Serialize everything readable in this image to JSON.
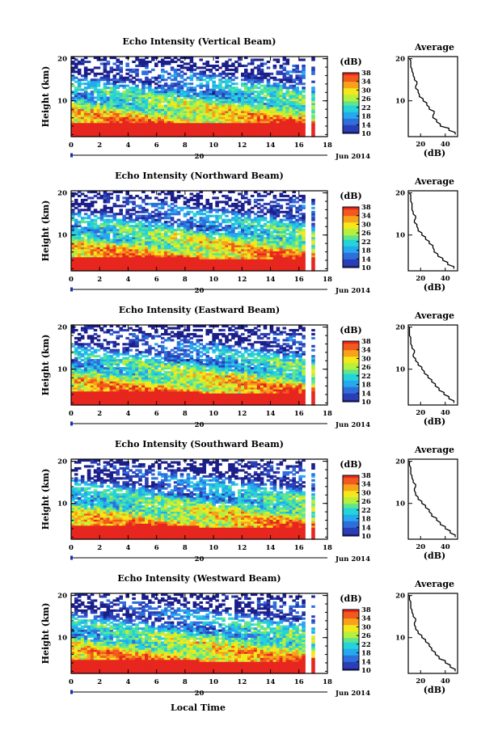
{
  "figure": {
    "xlabel": "Local Time",
    "colorbar_unit": "(dB)",
    "colorbar_ticks": [
      "10",
      "14",
      "18",
      "22",
      "26",
      "30",
      "34",
      "38"
    ],
    "colormap": [
      "#1b1f8a",
      "#2a3fb5",
      "#2f6fdc",
      "#25a9ef",
      "#25d3d8",
      "#5fe58f",
      "#b6ef3c",
      "#f4e81c",
      "#f7a21b",
      "#f2591d",
      "#e7261f"
    ],
    "date_label": "20",
    "month_label": "Jun 2014",
    "profile_title": "Average",
    "profile_xlabel": "(dB)"
  },
  "chart_data": [
    {
      "type": "heatmap",
      "title": "Echo Intensity (Vertical Beam)",
      "xlabel": "",
      "ylabel": "Height (km)",
      "xlim": [
        0,
        18
      ],
      "ylim": [
        1.5,
        20.5
      ],
      "xticks": [
        "0",
        "2",
        "4",
        "6",
        "8",
        "10",
        "12",
        "14",
        "16",
        "18"
      ],
      "yticks": [
        "10",
        "20"
      ],
      "color_range_dB": [
        10,
        38
      ],
      "data_gap_hours": [
        16.3,
        16.8
      ],
      "low_level_red_top_km": 4.8,
      "profile": {
        "title": "Average",
        "xlabel": "(dB)",
        "xticks": [
          "20",
          "40"
        ],
        "yticks": [
          "10",
          "20"
        ],
        "height_km": [
          2,
          3,
          4,
          5,
          6,
          7,
          8,
          9,
          10,
          11,
          12,
          13,
          14,
          15,
          16,
          17,
          18,
          19,
          20
        ],
        "intensity_dB": [
          48,
          43,
          36,
          33,
          30,
          31,
          27,
          25,
          22,
          19,
          18,
          16,
          17,
          15,
          14,
          13,
          12,
          12,
          11
        ]
      }
    },
    {
      "type": "heatmap",
      "title": "Echo Intensity (Northward Beam)",
      "xlabel": "",
      "ylabel": "Height (km)",
      "xlim": [
        0,
        18
      ],
      "ylim": [
        1.5,
        20.5
      ],
      "xticks": [
        "0",
        "2",
        "4",
        "6",
        "8",
        "10",
        "12",
        "14",
        "16",
        "18"
      ],
      "yticks": [
        "10",
        "20"
      ],
      "color_range_dB": [
        10,
        38
      ],
      "data_gap_hours": [
        16.3,
        16.8
      ],
      "low_level_red_top_km": 4.5,
      "profile": {
        "title": "Average",
        "xlabel": "(dB)",
        "xticks": [
          "20",
          "40"
        ],
        "yticks": [
          "10",
          "20"
        ],
        "height_km": [
          2,
          3,
          4,
          5,
          6,
          7,
          8,
          9,
          10,
          11,
          12,
          13,
          14,
          15,
          16,
          17,
          18,
          19,
          20
        ],
        "intensity_dB": [
          47,
          42,
          38,
          34,
          31,
          30,
          27,
          24,
          21,
          18,
          17,
          15,
          16,
          14,
          13,
          13,
          12,
          12,
          11
        ]
      }
    },
    {
      "type": "heatmap",
      "title": "Echo Intensity (Eastward Beam)",
      "xlabel": "",
      "ylabel": "Height (km)",
      "xlim": [
        0,
        18
      ],
      "ylim": [
        1.5,
        20.5
      ],
      "xticks": [
        "0",
        "2",
        "4",
        "6",
        "8",
        "10",
        "12",
        "14",
        "16",
        "18"
      ],
      "yticks": [
        "10",
        "20"
      ],
      "color_range_dB": [
        10,
        38
      ],
      "data_gap_hours": [
        16.3,
        16.8
      ],
      "low_level_red_top_km": 4.5,
      "profile": {
        "title": "Average",
        "xlabel": "(dB)",
        "xticks": [
          "20",
          "40"
        ],
        "yticks": [
          "10",
          "20"
        ],
        "height_km": [
          2,
          3,
          4,
          5,
          6,
          7,
          8,
          9,
          10,
          11,
          12,
          13,
          14,
          15,
          16,
          17,
          18,
          19,
          20
        ],
        "intensity_dB": [
          47,
          43,
          39,
          35,
          32,
          29,
          26,
          23,
          21,
          18,
          16,
          14,
          15,
          13,
          12,
          12,
          11,
          11,
          11
        ]
      }
    },
    {
      "type": "heatmap",
      "title": "Echo Intensity (Southward Beam)",
      "xlabel": "",
      "ylabel": "Height (km)",
      "xlim": [
        0,
        18
      ],
      "ylim": [
        1.5,
        20.5
      ],
      "xticks": [
        "0",
        "2",
        "4",
        "6",
        "8",
        "10",
        "12",
        "14",
        "16",
        "18"
      ],
      "yticks": [
        "10",
        "20"
      ],
      "color_range_dB": [
        10,
        38
      ],
      "data_gap_hours": [
        16.3,
        16.8
      ],
      "low_level_red_top_km": 4.5,
      "profile": {
        "title": "Average",
        "xlabel": "(dB)",
        "xticks": [
          "20",
          "40"
        ],
        "yticks": [
          "10",
          "20"
        ],
        "height_km": [
          2,
          3,
          4,
          5,
          6,
          7,
          8,
          9,
          10,
          11,
          12,
          13,
          14,
          15,
          16,
          17,
          18,
          19,
          20
        ],
        "intensity_dB": [
          48,
          44,
          40,
          36,
          33,
          29,
          27,
          24,
          21,
          18,
          16,
          15,
          16,
          14,
          13,
          12,
          12,
          11,
          11
        ]
      }
    },
    {
      "type": "heatmap",
      "title": "Echo Intensity (Westward Beam)",
      "xlabel": "",
      "ylabel": "Height (km)",
      "xlim": [
        0,
        18
      ],
      "ylim": [
        1.5,
        20.5
      ],
      "xticks": [
        "0",
        "2",
        "4",
        "6",
        "8",
        "10",
        "12",
        "14",
        "16",
        "18"
      ],
      "yticks": [
        "10",
        "20"
      ],
      "color_range_dB": [
        10,
        38
      ],
      "data_gap_hours": [
        16.3,
        16.8
      ],
      "low_level_red_top_km": 4.5,
      "profile": {
        "title": "Average",
        "xlabel": "(dB)",
        "xticks": [
          "20",
          "40"
        ],
        "yticks": [
          "10",
          "20"
        ],
        "height_km": [
          2,
          3,
          4,
          5,
          6,
          7,
          8,
          9,
          10,
          11,
          12,
          13,
          14,
          15,
          16,
          17,
          18,
          19,
          20
        ],
        "intensity_dB": [
          48,
          44,
          40,
          35,
          32,
          29,
          27,
          24,
          21,
          18,
          16,
          15,
          16,
          14,
          13,
          12,
          12,
          11,
          11
        ]
      }
    }
  ]
}
